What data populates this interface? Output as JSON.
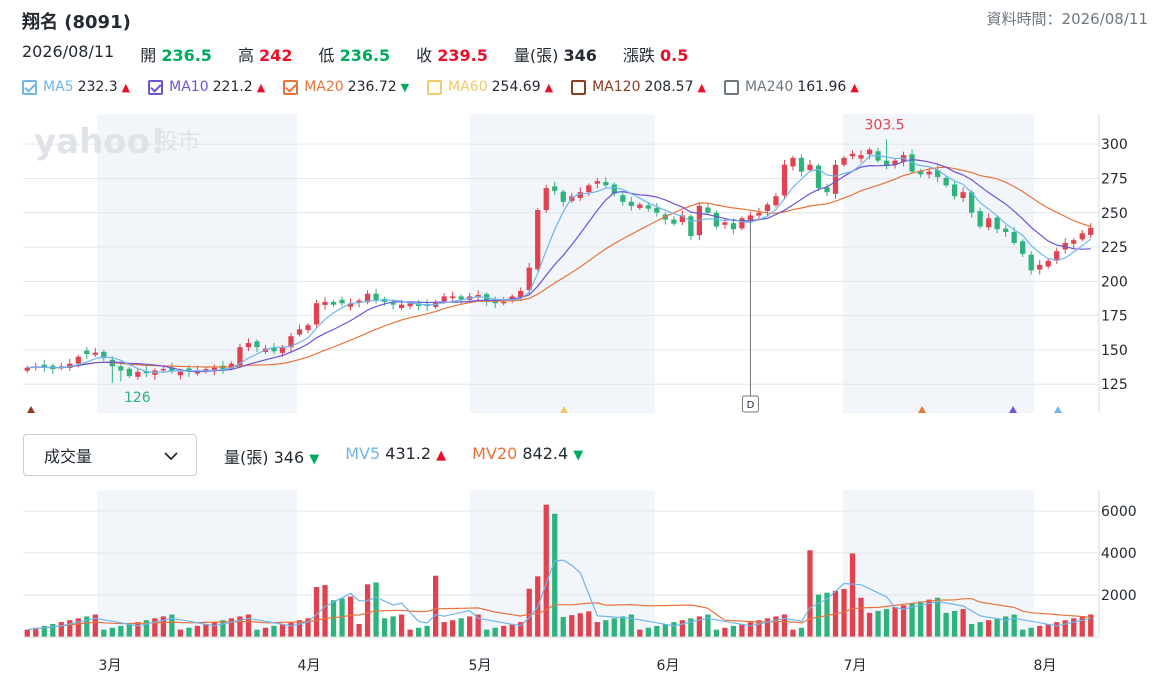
{
  "header": {
    "title": "翔名 (8091)",
    "data_time_label": "資料時間：2026/08/11"
  },
  "quote": {
    "date": "2026/08/11",
    "open_label": "開",
    "open": "236.5",
    "high_label": "高",
    "high": "242",
    "low_label": "低",
    "low": "236.5",
    "close_label": "收",
    "close": "239.5",
    "volume_label": "量(張)",
    "volume": "346",
    "change_label": "漲跌",
    "change": "0.5"
  },
  "ma_legend": [
    {
      "name": "MA5",
      "value": "232.3",
      "dir": "up",
      "color": "#6fb6ee",
      "checked": true
    },
    {
      "name": "MA10",
      "value": "221.2",
      "dir": "up",
      "color": "#6e53d4",
      "checked": true
    },
    {
      "name": "MA20",
      "value": "236.72",
      "dir": "down",
      "color": "#e8743b",
      "checked": true
    },
    {
      "name": "MA60",
      "value": "254.69",
      "dir": "up",
      "color": "#f2c96b",
      "checked": false
    },
    {
      "name": "MA120",
      "value": "208.57",
      "dir": "up",
      "color": "#8e3b1e",
      "checked": false
    },
    {
      "name": "MA240",
      "value": "161.96",
      "dir": "up",
      "color": "#6e7780",
      "checked": false
    }
  ],
  "watermark": {
    "brand": "yahoo!",
    "sub": "股市"
  },
  "volume_panel": {
    "select_label": "成交量",
    "volume_label": "量(張)",
    "volume_value": "346",
    "volume_dir": "down",
    "mv5_label": "MV5",
    "mv5_value": "431.2",
    "mv5_dir": "up",
    "mv20_label": "MV20",
    "mv20_value": "842.4",
    "mv20_dir": "down"
  },
  "colors": {
    "up": "#eb0f29",
    "down": "#00ab5e",
    "candle_up": "#e0434f",
    "candle_down": "#2eb37c",
    "band": "#f2f5f9"
  },
  "chart_data": [
    {
      "type": "candlestick",
      "ylim": [
        104,
        322
      ],
      "y_ticks": [
        "300",
        "275",
        "250",
        "225",
        "200",
        "175",
        "150",
        "125"
      ],
      "x_ticks": [
        "3月",
        "4月",
        "5月",
        "6月",
        "7月",
        "8月"
      ],
      "max_label": "303.5",
      "min_label": "126",
      "marker_label": "D",
      "grid": true
    },
    {
      "type": "bar",
      "ylim": [
        0,
        7000
      ],
      "y_ticks": [
        "6000",
        "4000",
        "2000"
      ],
      "series": [
        "量(張)",
        "MV5",
        "MV20"
      ]
    }
  ]
}
